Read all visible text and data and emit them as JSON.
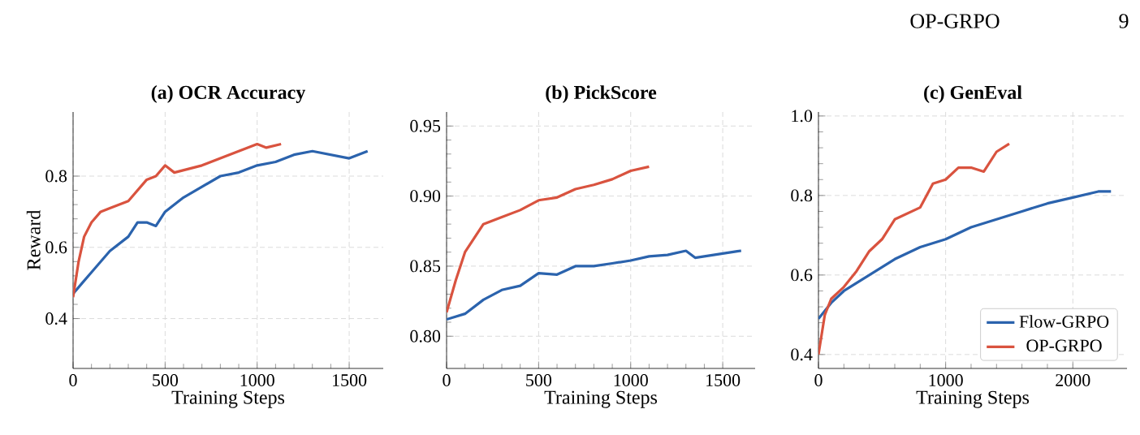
{
  "chart_data": [
    {
      "type": "line",
      "title": "(a) OCR Accuracy",
      "xlabel": "Training Steps",
      "ylabel": "Reward",
      "xlim": [
        0,
        1685
      ],
      "ylim": [
        0.26,
        0.98
      ],
      "xticks": [
        0,
        500,
        1000,
        1500
      ],
      "yticks": [
        0.4,
        0.6,
        0.8
      ],
      "grid": true,
      "series": [
        {
          "color": "#2b63ad",
          "x": [
            0,
            50,
            100,
            200,
            300,
            350,
            400,
            450,
            500,
            600,
            700,
            800,
            900,
            1000,
            1100,
            1200,
            1300,
            1400,
            1500,
            1550,
            1600
          ],
          "values": [
            0.47,
            0.5,
            0.53,
            0.59,
            0.63,
            0.67,
            0.67,
            0.66,
            0.7,
            0.74,
            0.77,
            0.8,
            0.81,
            0.83,
            0.84,
            0.86,
            0.87,
            0.86,
            0.85,
            0.86,
            0.87
          ]
        },
        {
          "color": "#d9533f",
          "x": [
            0,
            30,
            60,
            100,
            150,
            200,
            300,
            400,
            450,
            500,
            550,
            700,
            800,
            900,
            1000,
            1050,
            1130
          ],
          "values": [
            0.46,
            0.56,
            0.63,
            0.67,
            0.7,
            0.71,
            0.73,
            0.79,
            0.8,
            0.83,
            0.81,
            0.83,
            0.85,
            0.87,
            0.89,
            0.88,
            0.89
          ]
        }
      ]
    },
    {
      "type": "line",
      "title": "(b) PickScore",
      "xlabel": "Training Steps",
      "xlim": [
        0,
        1676
      ],
      "ylim": [
        0.777,
        0.96
      ],
      "xticks": [
        0,
        500,
        1000,
        1500
      ],
      "yticks": [
        {
          "value": 0.8,
          "label": "0.80"
        },
        0.85,
        {
          "value": 0.9,
          "label": "0.90"
        },
        0.95
      ],
      "grid": true,
      "series": [
        {
          "color": "#2b63ad",
          "x": [
            0,
            100,
            200,
            300,
            400,
            500,
            600,
            700,
            800,
            900,
            1000,
            1100,
            1200,
            1300,
            1350,
            1500,
            1600
          ],
          "values": [
            0.812,
            0.816,
            0.826,
            0.833,
            0.836,
            0.845,
            0.844,
            0.85,
            0.85,
            0.852,
            0.854,
            0.857,
            0.858,
            0.861,
            0.856,
            0.859,
            0.861
          ]
        },
        {
          "color": "#d9533f",
          "x": [
            0,
            50,
            100,
            150,
            200,
            300,
            400,
            500,
            600,
            700,
            800,
            900,
            1000,
            1100
          ],
          "values": [
            0.817,
            0.84,
            0.86,
            0.87,
            0.88,
            0.885,
            0.89,
            0.897,
            0.899,
            0.905,
            0.908,
            0.912,
            0.918,
            0.921
          ]
        }
      ]
    },
    {
      "type": "line",
      "title": "(c) GenEval",
      "xlabel": "Training Steps",
      "xlim": [
        0,
        2426
      ],
      "ylim": [
        0.365,
        1.01
      ],
      "xticks": [
        0,
        1000,
        2000
      ],
      "yticks": [
        0.4,
        0.6,
        0.8,
        {
          "value": 1.0,
          "label": "1.0"
        }
      ],
      "grid": true,
      "legend": "bottom right",
      "annotations": [
        "OP-GRPO",
        "9"
      ],
      "series": [
        {
          "name": "Flow-GRPO",
          "color": "#2b63ad",
          "x": [
            0,
            100,
            200,
            400,
            600,
            800,
            1000,
            1200,
            1400,
            1600,
            1800,
            2000,
            2200,
            2300
          ],
          "values": [
            0.49,
            0.53,
            0.56,
            0.6,
            0.64,
            0.67,
            0.69,
            0.72,
            0.74,
            0.76,
            0.78,
            0.795,
            0.81,
            0.81
          ]
        },
        {
          "name": "OP-GRPO",
          "color": "#d9533f",
          "x": [
            0,
            50,
            100,
            200,
            300,
            400,
            500,
            600,
            800,
            900,
            1000,
            1100,
            1200,
            1300,
            1400,
            1500
          ],
          "values": [
            0.4,
            0.5,
            0.54,
            0.57,
            0.61,
            0.66,
            0.69,
            0.74,
            0.77,
            0.83,
            0.84,
            0.87,
            0.87,
            0.86,
            0.91,
            0.93
          ]
        }
      ]
    }
  ]
}
